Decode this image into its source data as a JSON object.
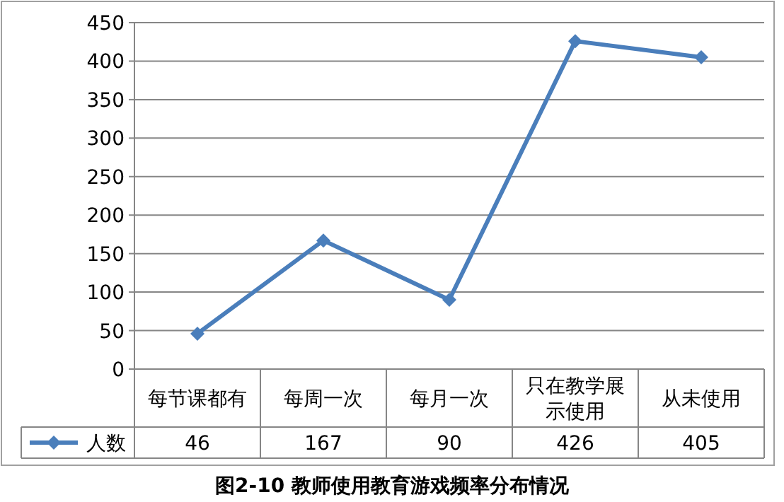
{
  "chart_data": {
    "type": "line",
    "title": "图2-10  教师使用教育游戏频率分布情况",
    "categories": [
      "每节课都有",
      "每周一次",
      "每月一次",
      "只在教学展示使用",
      "从未使用"
    ],
    "series": [
      {
        "name": "人数",
        "color": "#4a7ebb",
        "values": [
          46,
          167,
          90,
          426,
          405
        ]
      }
    ],
    "ylim": [
      0,
      450
    ],
    "yticks": [
      0,
      50,
      100,
      150,
      200,
      250,
      300,
      350,
      400,
      450
    ],
    "grid": "y",
    "marker": "diamond",
    "line_style": "solid",
    "data_labels": true,
    "legend": "bottom left"
  }
}
